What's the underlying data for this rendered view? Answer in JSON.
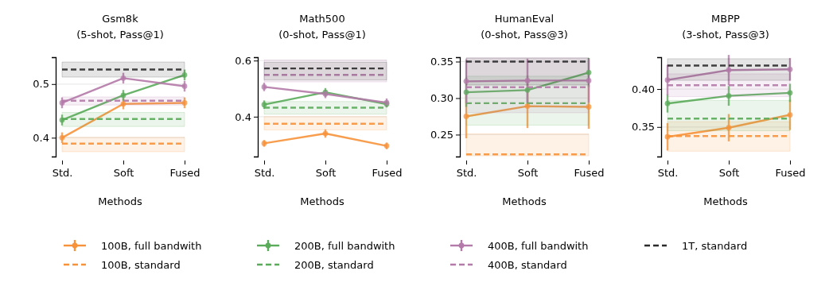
{
  "chart_data": [
    {
      "type": "line",
      "title": "Gsm8k",
      "subtitle": "(5-shot, Pass@1)",
      "xlabel": "Methods",
      "categories": [
        "Std.",
        "Soft",
        "Fused"
      ],
      "ylim": [
        0.365,
        0.55
      ],
      "yticks": [
        0.4,
        0.5
      ],
      "grid": "y",
      "legend": "bottom",
      "series": [
        {
          "name": "100B, full bandwith",
          "color": "#f7923a",
          "values": [
            0.4,
            0.463,
            0.465
          ],
          "errors": [
            0.01,
            0.01,
            0.01
          ],
          "marker": "circle",
          "line_style": "solid"
        },
        {
          "name": "100B, standard",
          "color": "#f7923a",
          "values": [
            0.389,
            0.389,
            0.389
          ],
          "lower": [
            0.374,
            0.374,
            0.374
          ],
          "upper": [
            0.401,
            0.401,
            0.401
          ],
          "marker": "none",
          "line_style": "dashed"
        },
        {
          "name": "200B, full bandwith",
          "color": "#5aab5a",
          "values": [
            0.433,
            0.479,
            0.517
          ],
          "errors": [
            0.01,
            0.01,
            0.01
          ],
          "marker": "circle",
          "line_style": "solid"
        },
        {
          "name": "200B, standard",
          "color": "#5aab5a",
          "values": [
            0.435,
            0.435,
            0.435
          ],
          "lower": [
            0.421,
            0.421,
            0.421
          ],
          "upper": [
            0.447,
            0.447,
            0.447
          ],
          "marker": "none",
          "line_style": "dashed"
        },
        {
          "name": "400B, full bandwith",
          "color": "#b47aa9",
          "values": [
            0.465,
            0.511,
            0.496
          ],
          "errors": [
            0.01,
            0.01,
            0.01
          ],
          "marker": "circle",
          "line_style": "solid"
        },
        {
          "name": "400B, standard",
          "color": "#b47aa9",
          "values": [
            0.469,
            0.469,
            0.469
          ],
          "lower": [
            0.461,
            0.461,
            0.461
          ],
          "upper": [
            0.476,
            0.476,
            0.476
          ],
          "marker": "none",
          "line_style": "dashed"
        },
        {
          "name": "1T, standard",
          "color": "#2b2b2b",
          "values": [
            0.527,
            0.527,
            0.527
          ],
          "lower": [
            0.513,
            0.513,
            0.513
          ],
          "upper": [
            0.541,
            0.541,
            0.541
          ],
          "marker": "none",
          "line_style": "dashed"
        }
      ]
    },
    {
      "type": "line",
      "title": "Math500",
      "subtitle": "(0-shot, Pass@1)",
      "xlabel": "Methods",
      "categories": [
        "Std.",
        "Soft",
        "Fused"
      ],
      "ylim": [
        0.258,
        0.612
      ],
      "yticks": [
        0.4,
        0.6
      ],
      "grid": "y",
      "series": [
        {
          "color": "#f7923a",
          "values": [
            0.305,
            0.34,
            0.296
          ],
          "errors": [
            0.012,
            0.015,
            0.012
          ],
          "marker": "circle",
          "line_style": "solid"
        },
        {
          "color": "#f7923a",
          "values": [
            0.375,
            0.375,
            0.375
          ],
          "lower": [
            0.353,
            0.353,
            0.353
          ],
          "upper": [
            0.4,
            0.4,
            0.4
          ],
          "marker": "none",
          "line_style": "dashed"
        },
        {
          "color": "#5aab5a",
          "values": [
            0.443,
            0.487,
            0.445
          ],
          "errors": [
            0.015,
            0.015,
            0.012
          ],
          "marker": "circle",
          "line_style": "solid"
        },
        {
          "color": "#5aab5a",
          "values": [
            0.432,
            0.432,
            0.432
          ],
          "lower": [
            0.409,
            0.409,
            0.409
          ],
          "upper": [
            0.454,
            0.454,
            0.454
          ],
          "marker": "none",
          "line_style": "dashed"
        },
        {
          "color": "#b47aa9",
          "values": [
            0.506,
            0.481,
            0.45
          ],
          "errors": [
            0.015,
            0.015,
            0.015
          ],
          "marker": "circle",
          "line_style": "solid"
        },
        {
          "color": "#b47aa9",
          "values": [
            0.549,
            0.549,
            0.549
          ],
          "lower": [
            0.524,
            0.524,
            0.524
          ],
          "upper": [
            0.602,
            0.602,
            0.602
          ],
          "marker": "none",
          "line_style": "dashed"
        },
        {
          "color": "#2b2b2b",
          "values": [
            0.572,
            0.572,
            0.572
          ],
          "lower": [
            0.531,
            0.531,
            0.531
          ],
          "upper": [
            0.594,
            0.594,
            0.594
          ],
          "marker": "none",
          "line_style": "dashed"
        }
      ]
    },
    {
      "type": "line",
      "title": "HumanEval",
      "subtitle": "(0-shot, Pass@3)",
      "xlabel": "Methods",
      "categories": [
        "Std.",
        "Soft",
        "Fused"
      ],
      "ylim": [
        0.22,
        0.356
      ],
      "yticks": [
        {
          "value": 0.25,
          "label": "0.25"
        },
        {
          "value": 0.3,
          "label": "0.30"
        },
        {
          "value": 0.35,
          "label": "0.35"
        }
      ],
      "grid": "y",
      "series": [
        {
          "color": "#f7923a",
          "values": [
            0.275,
            0.289,
            0.288
          ],
          "errors": [
            0.03,
            0.03,
            0.03
          ],
          "marker": "circle",
          "line_style": "solid"
        },
        {
          "color": "#f7923a",
          "values": [
            0.223,
            0.223,
            0.223
          ],
          "lower": [
            0.221,
            0.221,
            0.221
          ],
          "upper": [
            0.251,
            0.251,
            0.251
          ],
          "marker": "none",
          "line_style": "dashed"
        },
        {
          "color": "#5aab5a",
          "values": [
            0.308,
            0.311,
            0.335
          ],
          "errors": [
            0.02,
            0.02,
            0.02
          ],
          "marker": "circle",
          "line_style": "solid"
        },
        {
          "color": "#5aab5a",
          "values": [
            0.293,
            0.293,
            0.293
          ],
          "lower": [
            0.263,
            0.263,
            0.263
          ],
          "upper": [
            0.33,
            0.33,
            0.33
          ],
          "marker": "none",
          "line_style": "dashed"
        },
        {
          "color": "#b47aa9",
          "values": [
            0.323,
            0.324,
            0.324
          ],
          "errors": [
            0.03,
            0.03,
            0.03
          ],
          "marker": "circle",
          "line_style": "solid"
        },
        {
          "color": "#b47aa9",
          "values": [
            0.315,
            0.315,
            0.315
          ],
          "lower": [
            0.28,
            0.28,
            0.28
          ],
          "upper": [
            0.355,
            0.355,
            0.355
          ],
          "marker": "none",
          "line_style": "dashed"
        },
        {
          "color": "#2b2b2b",
          "values": [
            0.35,
            0.35,
            0.35
          ],
          "lower": [
            0.318,
            0.318,
            0.318
          ],
          "upper": [
            0.355,
            0.355,
            0.355
          ],
          "marker": "none",
          "line_style": "dashed"
        }
      ]
    },
    {
      "type": "line",
      "title": "MBPP",
      "subtitle": "(3-shot, Pass@3)",
      "xlabel": "Methods",
      "categories": [
        "Std.",
        "Soft",
        "Fused"
      ],
      "ylim": [
        0.311,
        0.442
      ],
      "yticks": [
        {
          "value": 0.35,
          "label": "0.35"
        },
        {
          "value": 0.4,
          "label": "0.40"
        }
      ],
      "grid": "y",
      "series": [
        {
          "color": "#f7923a",
          "values": [
            0.337,
            0.349,
            0.366
          ],
          "errors": [
            0.018,
            0.018,
            0.02
          ],
          "marker": "circle",
          "line_style": "solid"
        },
        {
          "color": "#f7923a",
          "values": [
            0.338,
            0.338,
            0.338
          ],
          "lower": [
            0.318,
            0.318,
            0.318
          ],
          "upper": [
            0.357,
            0.357,
            0.357
          ],
          "marker": "none",
          "line_style": "dashed"
        },
        {
          "color": "#5aab5a",
          "values": [
            0.381,
            0.391,
            0.395
          ],
          "errors": [
            0.012,
            0.013,
            0.012
          ],
          "marker": "circle",
          "line_style": "solid"
        },
        {
          "color": "#5aab5a",
          "values": [
            0.361,
            0.361,
            0.361
          ],
          "lower": [
            0.345,
            0.345,
            0.345
          ],
          "upper": [
            0.385,
            0.385,
            0.385
          ],
          "marker": "none",
          "line_style": "dashed"
        },
        {
          "color": "#b47aa9",
          "values": [
            0.412,
            0.425,
            0.426
          ],
          "errors": [
            0.02,
            0.02,
            0.015
          ],
          "marker": "circle",
          "line_style": "solid"
        },
        {
          "color": "#b47aa9",
          "values": [
            0.405,
            0.405,
            0.405
          ],
          "lower": [
            0.39,
            0.39,
            0.39
          ],
          "upper": [
            0.42,
            0.42,
            0.42
          ],
          "marker": "none",
          "line_style": "dashed"
        },
        {
          "color": "#2b2b2b",
          "values": [
            0.431,
            0.431,
            0.431
          ],
          "lower": [
            0.4115,
            0.4115,
            0.4115
          ],
          "upper": [
            0.44,
            0.44,
            0.44
          ],
          "marker": "none",
          "line_style": "dashed"
        }
      ]
    }
  ]
}
